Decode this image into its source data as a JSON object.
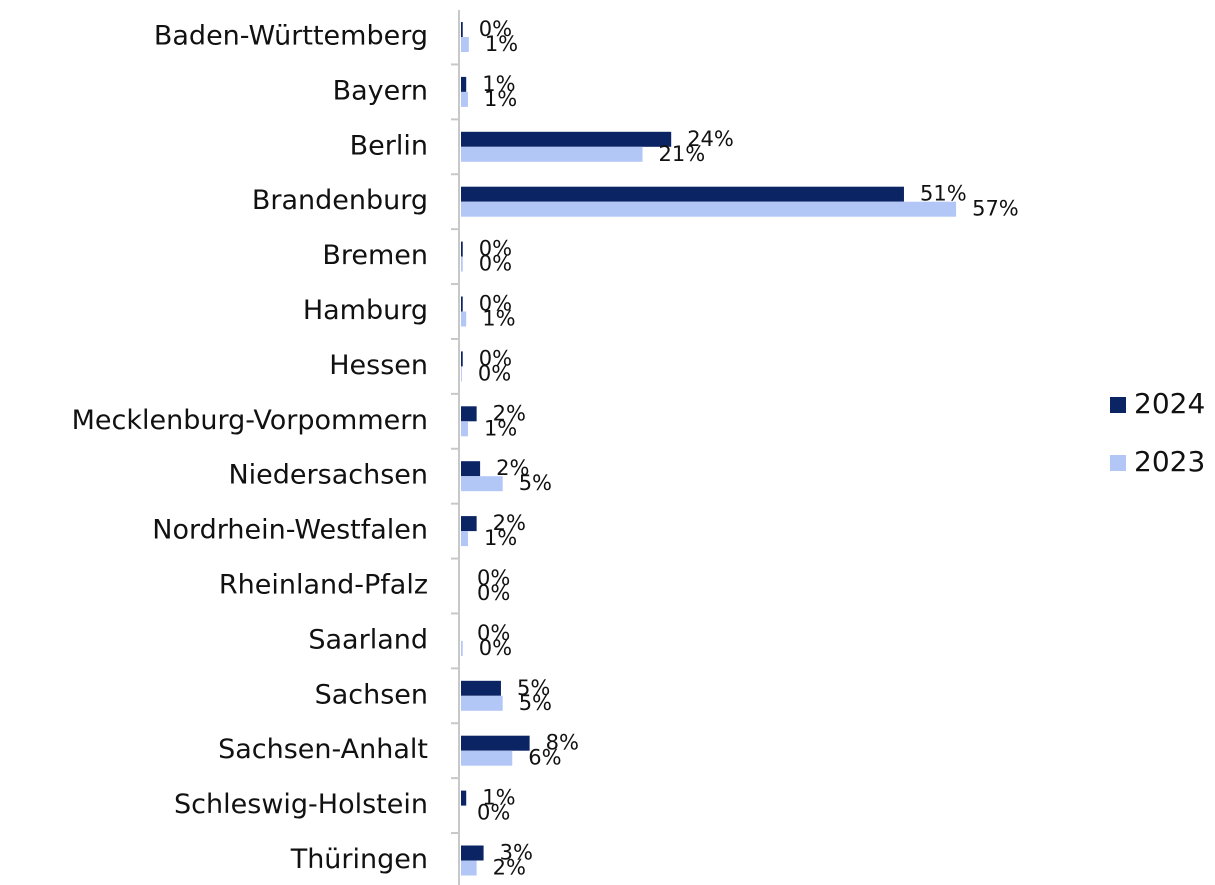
{
  "chart_data": {
    "type": "bar",
    "orientation": "horizontal",
    "categories": [
      "Baden-Württemberg",
      "Bayern",
      "Berlin",
      "Brandenburg",
      "Bremen",
      "Hamburg",
      "Hessen",
      "Mecklenburg-Vorpommern",
      "Niedersachsen",
      "Nordrhein-Westfalen",
      "Rheinland-Pfalz",
      "Saarland",
      "Sachsen",
      "Sachsen-Anhalt",
      "Schleswig-Holstein",
      "Thüringen"
    ],
    "series": [
      {
        "name": "2024",
        "color": "#0b2463",
        "values": [
          0.2,
          0.6,
          24.2,
          51,
          0.2,
          0.2,
          0.2,
          1.8,
          2.2,
          1.8,
          0,
          0,
          4.6,
          7.9,
          0.6,
          2.6
        ],
        "value_labels": [
          "0%",
          "1%",
          "24%",
          "51%",
          "0%",
          "0%",
          "0%",
          "2%",
          "2%",
          "2%",
          "0%",
          "0%",
          "5%",
          "8%",
          "1%",
          "3%"
        ]
      },
      {
        "name": "2023",
        "color": "#b3c7f7",
        "values": [
          0.9,
          0.8,
          20.9,
          57,
          0.2,
          0.6,
          0.1,
          0.8,
          4.8,
          0.8,
          0,
          0.2,
          4.8,
          5.9,
          0,
          1.8
        ],
        "value_labels": [
          "1%",
          "1%",
          "21%",
          "57%",
          "0%",
          "1%",
          "0%",
          "1%",
          "5%",
          "1%",
          "0%",
          "0%",
          "5%",
          "6%",
          "0%",
          "2%"
        ]
      }
    ],
    "xlim": [
      0,
      70
    ],
    "legend": "right"
  }
}
